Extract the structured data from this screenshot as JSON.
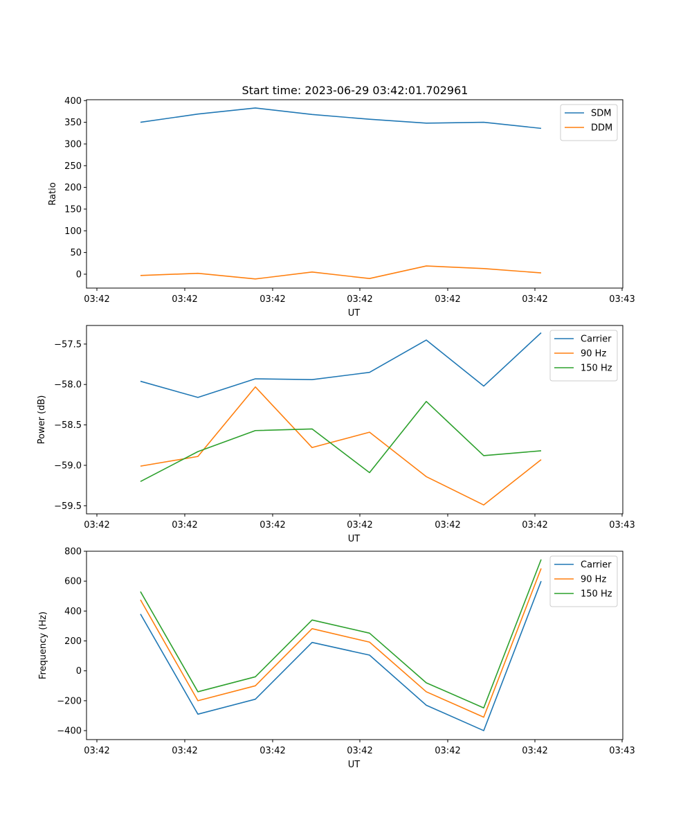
{
  "figure": {
    "title": "Start time: 2023-06-29 03:42:01.702961"
  },
  "colors": {
    "blue": "#1f77b4",
    "orange": "#ff7f0e",
    "green": "#2ca02c"
  },
  "chart_data": [
    {
      "type": "line",
      "title": "Start time: 2023-06-29 03:42:01.702961",
      "xlabel": "UT",
      "ylabel": "Ratio",
      "xticklabels": [
        "03:42",
        "03:42",
        "03:42",
        "03:42",
        "03:42",
        "03:42",
        "03:42",
        "03:43"
      ],
      "yticks": [
        0,
        50,
        100,
        150,
        200,
        250,
        300,
        350,
        400
      ],
      "ylim": [
        -32,
        402
      ],
      "legend": "top-right",
      "grid": false,
      "series": [
        {
          "name": "SDM",
          "color": "#1f77b4",
          "values": [
            350,
            369,
            383,
            368,
            357,
            348,
            350,
            336
          ]
        },
        {
          "name": "DDM",
          "color": "#ff7f0e",
          "values": [
            -3,
            2,
            -11,
            5,
            -10,
            19,
            13,
            3
          ]
        }
      ]
    },
    {
      "type": "line",
      "title": "",
      "xlabel": "UT",
      "ylabel": "Power (dB)",
      "xticklabels": [
        "03:42",
        "03:42",
        "03:42",
        "03:42",
        "03:42",
        "03:42",
        "03:42",
        "03:43"
      ],
      "yticks": [
        -59.5,
        -59.0,
        -58.5,
        -58.0,
        -57.5
      ],
      "yticklabels": [
        "−59.5",
        "−59.0",
        "−58.5",
        "−58.0",
        "−57.5"
      ],
      "ylim": [
        -59.6,
        -57.27
      ],
      "legend": "top-right",
      "grid": false,
      "series": [
        {
          "name": "Carrier",
          "color": "#1f77b4",
          "values": [
            -57.96,
            -58.16,
            -57.93,
            -57.94,
            -57.85,
            -57.45,
            -58.02,
            -57.36
          ]
        },
        {
          "name": "90 Hz",
          "color": "#ff7f0e",
          "values": [
            -59.01,
            -58.89,
            -58.03,
            -58.78,
            -58.59,
            -59.14,
            -59.49,
            -58.93
          ]
        },
        {
          "name": "150 Hz",
          "color": "#2ca02c",
          "values": [
            -59.2,
            -58.83,
            -58.57,
            -58.55,
            -59.09,
            -58.21,
            -58.88,
            -58.82
          ]
        }
      ]
    },
    {
      "type": "line",
      "title": "",
      "xlabel": "UT",
      "ylabel": "Frequency (Hz)",
      "xticklabels": [
        "03:42",
        "03:42",
        "03:42",
        "03:42",
        "03:42",
        "03:42",
        "03:42",
        "03:43"
      ],
      "yticks": [
        -400,
        -200,
        0,
        200,
        400,
        600,
        800
      ],
      "yticklabels": [
        "−400",
        "−200",
        "0",
        "200",
        "400",
        "600",
        "800"
      ],
      "ylim": [
        -460,
        800
      ],
      "legend": "top-right",
      "grid": false,
      "series": [
        {
          "name": "Carrier",
          "color": "#1f77b4",
          "values": [
            380,
            -290,
            -190,
            190,
            105,
            -230,
            -400,
            600
          ]
        },
        {
          "name": "90 Hz",
          "color": "#ff7f0e",
          "values": [
            475,
            -200,
            -100,
            282,
            192,
            -140,
            -310,
            685
          ]
        },
        {
          "name": "150 Hz",
          "color": "#2ca02c",
          "values": [
            530,
            -140,
            -40,
            340,
            252,
            -80,
            -248,
            745
          ]
        }
      ]
    }
  ]
}
